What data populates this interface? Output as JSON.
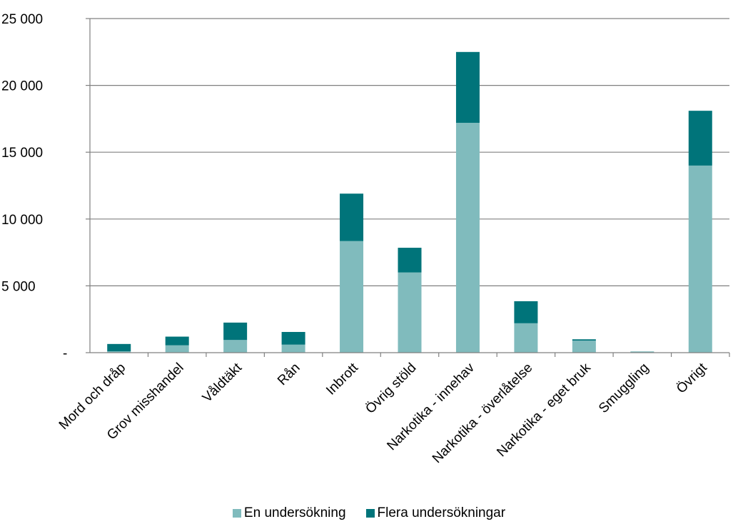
{
  "chart_data": {
    "type": "bar",
    "stacked": true,
    "categories": [
      "Mord och dråp",
      "Grov misshandel",
      "Våldtäkt",
      "Rån",
      "Inbrott",
      "Övrig stöld",
      "Narkotika - innehav",
      "Narkotika - överlåtelse",
      "Narkotika - eget bruk",
      "Smuggling",
      "Övrigt"
    ],
    "series": [
      {
        "name": "En undersökning",
        "color": "#80BBBD",
        "values": [
          100,
          550,
          950,
          600,
          8350,
          6000,
          17200,
          2200,
          900,
          60,
          14000
        ]
      },
      {
        "name": "Flera undersökningar",
        "color": "#00747A",
        "values": [
          550,
          650,
          1300,
          950,
          3550,
          1850,
          5300,
          1650,
          100,
          20,
          4100
        ]
      }
    ],
    "title": "",
    "xlabel": "",
    "ylabel": "",
    "ylim": [
      0,
      25000
    ],
    "yticks": [
      {
        "value": 0,
        "label": "-"
      },
      {
        "value": 5000,
        "label": "5 000"
      },
      {
        "value": 10000,
        "label": "10 000"
      },
      {
        "value": 15000,
        "label": "15 000"
      },
      {
        "value": 20000,
        "label": "20 000"
      },
      {
        "value": 25000,
        "label": "25 000"
      }
    ],
    "grid": true,
    "legend_position": "bottom"
  }
}
